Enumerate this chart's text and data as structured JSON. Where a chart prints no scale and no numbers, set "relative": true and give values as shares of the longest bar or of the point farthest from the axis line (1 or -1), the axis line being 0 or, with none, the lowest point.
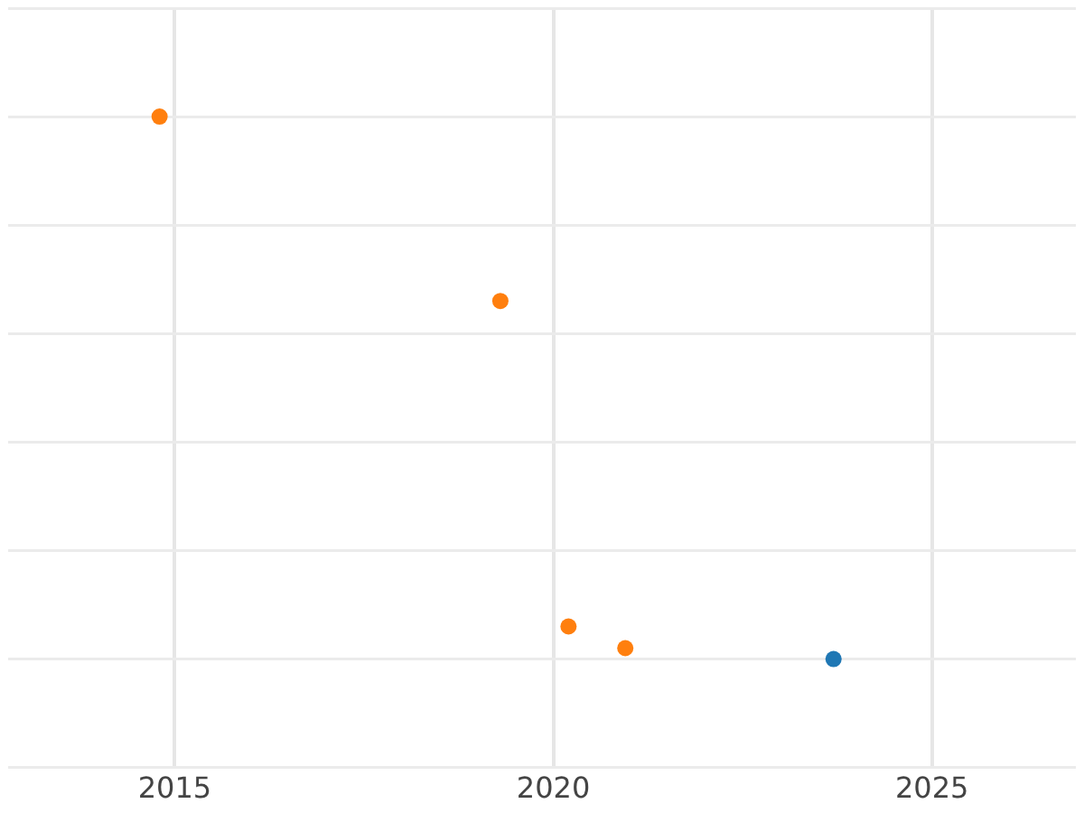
{
  "chart_data": {
    "type": "scatter",
    "relative": true,
    "xlim": [
      2012.8,
      2026.9
    ],
    "xticks": [
      2015,
      2020,
      2025
    ],
    "grid": true,
    "marker": "circle",
    "series": [
      {
        "color": "#ff7f0e",
        "x": [
          2014.8,
          2019.3,
          2020.2,
          2020.95
        ],
        "values": [
          1,
          0.66,
          0.06,
          0.02
        ]
      },
      {
        "color": "#1f77b4",
        "x": [
          2023.7
        ],
        "values": [
          0
        ]
      }
    ]
  }
}
